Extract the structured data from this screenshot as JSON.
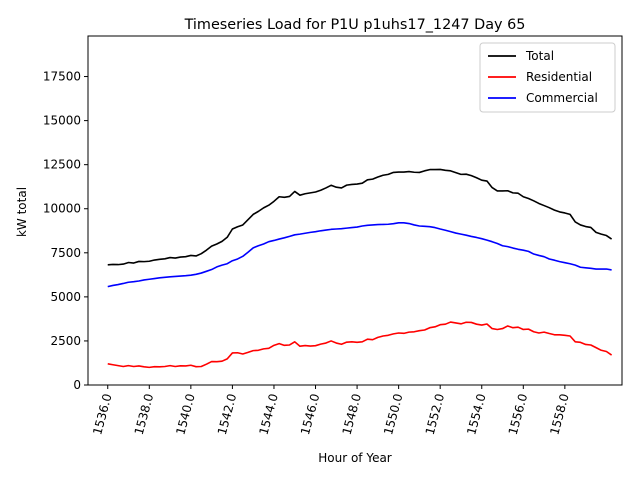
{
  "chart_data": {
    "type": "line",
    "title": "Timeseries Load for P1U p1uhs17_1247  Day 65",
    "xlabel": "Hour of Year",
    "ylabel": "kW total",
    "xlim": [
      1535.05,
      1560.75
    ],
    "ylim": [
      0,
      19800
    ],
    "xticks": [
      1536,
      1538,
      1540,
      1542,
      1544,
      1546,
      1548,
      1550,
      1552,
      1554,
      1556,
      1558
    ],
    "xtick_labels": [
      "1536.0",
      "1538.0",
      "1540.0",
      "1542.0",
      "1544.0",
      "1546.0",
      "1548.0",
      "1550.0",
      "1552.0",
      "1554.0",
      "1556.0",
      "1558.0"
    ],
    "yticks": [
      0,
      2500,
      5000,
      7500,
      10000,
      12500,
      15000,
      17500
    ],
    "ytick_labels": [
      "0",
      "2500",
      "5000",
      "7500",
      "10000",
      "12500",
      "15000",
      "17500"
    ],
    "grid": false,
    "legend_position": "top-right",
    "x_start": 1536.0,
    "x_step": 0.25,
    "series": [
      {
        "name": "Total",
        "color": "#000000",
        "values": [
          6820,
          6840,
          6830,
          6860,
          6950,
          6920,
          7010,
          7000,
          7020,
          7090,
          7130,
          7160,
          7230,
          7200,
          7260,
          7280,
          7350,
          7320,
          7450,
          7650,
          7880,
          8000,
          8150,
          8380,
          8850,
          8980,
          9080,
          9380,
          9680,
          9850,
          10050,
          10200,
          10420,
          10680,
          10650,
          10700,
          10980,
          10770,
          10850,
          10900,
          10950,
          11050,
          11180,
          11330,
          11220,
          11180,
          11340,
          11380,
          11400,
          11450,
          11640,
          11680,
          11800,
          11900,
          11950,
          12060,
          12080,
          12080,
          12110,
          12070,
          12060,
          12150,
          12220,
          12220,
          12230,
          12180,
          12150,
          12050,
          11950,
          11960,
          11880,
          11760,
          11620,
          11570,
          11200,
          11010,
          11010,
          11020,
          10900,
          10880,
          10680,
          10580,
          10450,
          10300,
          10180,
          10060,
          9920,
          9820,
          9760,
          9680,
          9250,
          9080,
          8990,
          8940,
          8660,
          8560,
          8480,
          8280
        ]
      },
      {
        "name": "Residential",
        "color": "#ff0000",
        "values": [
          1200,
          1150,
          1100,
          1050,
          1100,
          1050,
          1080,
          1030,
          1000,
          1040,
          1030,
          1050,
          1100,
          1050,
          1090,
          1080,
          1120,
          1040,
          1050,
          1180,
          1330,
          1320,
          1350,
          1480,
          1820,
          1830,
          1760,
          1850,
          1950,
          1970,
          2050,
          2080,
          2250,
          2350,
          2250,
          2270,
          2450,
          2200,
          2240,
          2210,
          2230,
          2320,
          2380,
          2500,
          2380,
          2310,
          2430,
          2450,
          2420,
          2450,
          2600,
          2570,
          2700,
          2780,
          2820,
          2900,
          2950,
          2930,
          3000,
          3020,
          3080,
          3120,
          3250,
          3300,
          3420,
          3450,
          3570,
          3520,
          3470,
          3560,
          3550,
          3450,
          3400,
          3460,
          3200,
          3150,
          3200,
          3350,
          3250,
          3280,
          3150,
          3170,
          3020,
          2950,
          3000,
          2920,
          2850,
          2850,
          2820,
          2780,
          2450,
          2420,
          2300,
          2270,
          2120,
          1970,
          1900,
          1700
        ]
      },
      {
        "name": "Commercial",
        "color": "#0000ff",
        "values": [
          5580,
          5650,
          5700,
          5760,
          5830,
          5860,
          5900,
          5960,
          6000,
          6040,
          6080,
          6110,
          6140,
          6160,
          6180,
          6200,
          6230,
          6280,
          6350,
          6450,
          6550,
          6700,
          6800,
          6880,
          7050,
          7150,
          7300,
          7530,
          7780,
          7900,
          8000,
          8130,
          8200,
          8280,
          8350,
          8430,
          8520,
          8560,
          8610,
          8660,
          8700,
          8750,
          8790,
          8830,
          8850,
          8870,
          8900,
          8930,
          8960,
          9020,
          9060,
          9080,
          9100,
          9110,
          9120,
          9150,
          9200,
          9200,
          9160,
          9080,
          9020,
          9000,
          8980,
          8930,
          8850,
          8780,
          8700,
          8620,
          8560,
          8500,
          8430,
          8370,
          8300,
          8220,
          8130,
          8030,
          7900,
          7850,
          7770,
          7700,
          7650,
          7580,
          7430,
          7350,
          7280,
          7150,
          7080,
          7000,
          6940,
          6880,
          6800,
          6680,
          6650,
          6620,
          6580,
          6580,
          6580,
          6530
        ]
      }
    ]
  }
}
